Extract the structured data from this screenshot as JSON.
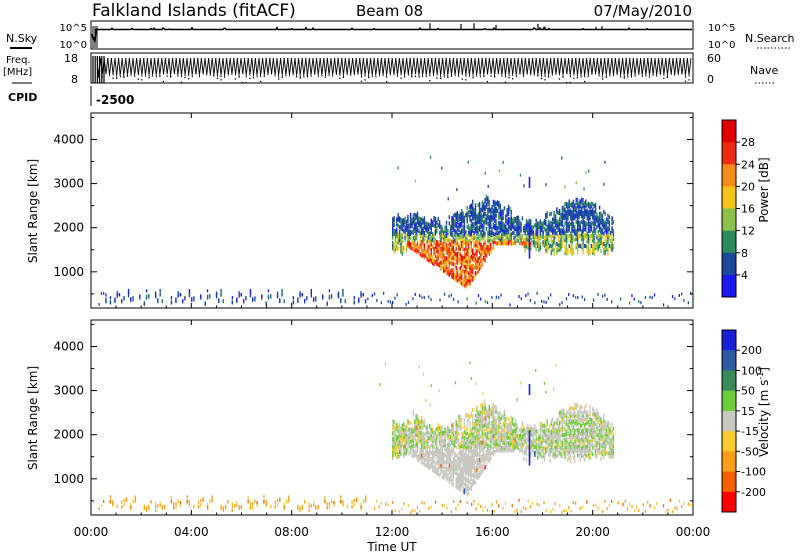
{
  "header": {
    "station": "Falkland Islands (fitACF)",
    "beam": "Beam 08",
    "date": "07/May/2010"
  },
  "noise_panel": {
    "left_label": "N.Sky",
    "right_label": "N.Search",
    "ticks": [
      "10^5",
      "10^0"
    ]
  },
  "freq_panel": {
    "left_label_1": "Freq.",
    "left_label_2": "[MHz]",
    "left_ticks": [
      "18",
      "8"
    ],
    "right_ticks": [
      "60",
      "0"
    ],
    "right_label": "Nave",
    "cpid_label": "CPID",
    "cpid_value": "-2500"
  },
  "x_axis": {
    "label": "Time UT",
    "ticks": [
      "00:00",
      "04:00",
      "08:00",
      "12:00",
      "16:00",
      "20:00",
      "00:00"
    ]
  },
  "colorbars": {
    "power": {
      "label": "Power [dB]",
      "ticks": [
        "28",
        "24",
        "20",
        "16",
        "12",
        "8",
        "4"
      ]
    },
    "velocity": {
      "label_main": "Velocity [m s",
      "label_sup": "-1",
      "label_end": "]",
      "ticks": [
        "200",
        "100",
        "50",
        "15",
        "-15",
        "-50",
        "-100",
        "-200"
      ]
    }
  },
  "colors": {
    "power_scale": [
      "#1a1aee",
      "#1a4a9a",
      "#2e8a5a",
      "#8cc24a",
      "#f2c418",
      "#f48a18",
      "#ee2a10",
      "#e00000"
    ],
    "velocity_scale": [
      "#ff0000",
      "#f46000",
      "#f8a018",
      "#f8cc30",
      "#c8c8c0",
      "#6ccc3a",
      "#3a8a5a",
      "#2a5aa0",
      "#1a20d8"
    ]
  },
  "chart_data": [
    {
      "type": "heatmap",
      "title": "",
      "x": "Time UT (hours)",
      "xlim": [
        0,
        24
      ],
      "ylabel": "Slant Range [km]",
      "ylim": [
        180,
        4600
      ],
      "yticks": [
        "4000",
        "3000",
        "2000",
        "1000"
      ],
      "colorbar": "Power [dB]",
      "clim": [
        0,
        32
      ],
      "features": [
        {
          "name": "ground scatter near range",
          "time_range": [
            0,
            24
          ],
          "range_km": [
            200,
            500
          ],
          "value": "mixed 4-12"
        },
        {
          "name": "ionospheric scatter upper band",
          "time_range": [
            12,
            21
          ],
          "range_km": [
            1500,
            2500
          ],
          "value": "4-10"
        },
        {
          "name": "strong echo V",
          "time_range": [
            12.5,
            16.5
          ],
          "range_km": [
            600,
            1600
          ],
          "value": "20-28"
        }
      ]
    },
    {
      "type": "heatmap",
      "title": "",
      "x": "Time UT (hours)",
      "xlim": [
        0,
        24
      ],
      "ylabel": "Slant Range [km]",
      "ylim": [
        180,
        4600
      ],
      "yticks": [
        "4000",
        "3000",
        "2000",
        "1000"
      ],
      "colorbar": "Velocity [m s-1]",
      "clim": [
        -250,
        250
      ],
      "features": [
        {
          "name": "ground scatter near range",
          "time_range": [
            0,
            24
          ],
          "range_km": [
            200,
            500
          ],
          "value": "-15 to -100"
        },
        {
          "name": "main scatter region",
          "time_range": [
            12,
            21
          ],
          "range_km": [
            600,
            2600
          ],
          "value": "-15 to 15"
        }
      ]
    }
  ]
}
